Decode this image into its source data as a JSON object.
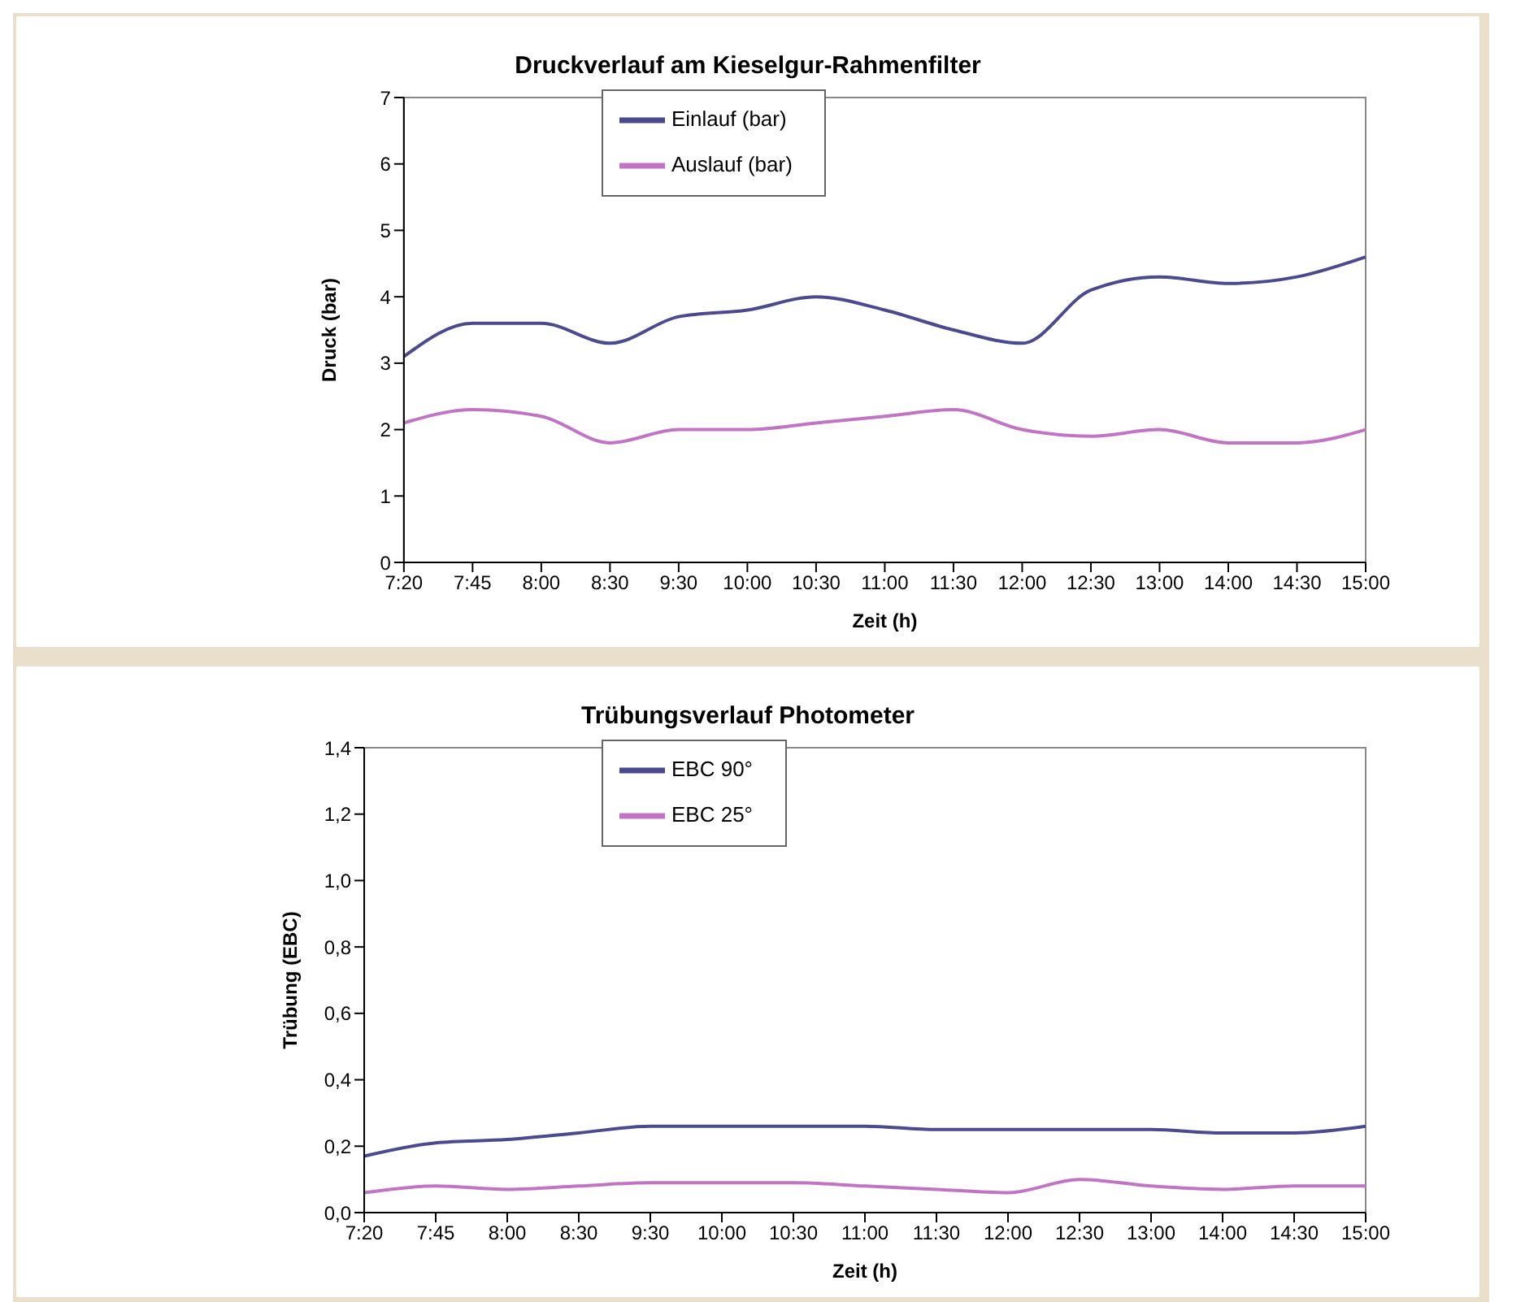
{
  "chart_data": [
    {
      "type": "line",
      "title": "Druckverlauf am Kieselgur-Rahmenfilter",
      "xlabel": "Zeit (h)",
      "ylabel": "Druck (bar)",
      "categories": [
        "7:20",
        "7:45",
        "8:00",
        "8:30",
        "9:30",
        "10:00",
        "10:30",
        "11:00",
        "11:30",
        "12:00",
        "12:30",
        "13:00",
        "14:00",
        "14:30",
        "15:00"
      ],
      "series": [
        {
          "name": "Einlauf (bar)",
          "color": "#4b4a8e",
          "values": [
            3.1,
            3.6,
            3.6,
            3.3,
            3.7,
            3.8,
            4.0,
            3.8,
            3.5,
            3.3,
            4.1,
            4.3,
            4.2,
            4.3,
            4.6
          ]
        },
        {
          "name": "Auslauf (bar)",
          "color": "#c174c4",
          "values": [
            2.1,
            2.3,
            2.2,
            1.8,
            2.0,
            2.0,
            2.1,
            2.2,
            2.3,
            2.0,
            1.9,
            2.0,
            1.8,
            1.8,
            2.0
          ]
        }
      ],
      "ylim": [
        0,
        7
      ],
      "yticks": [
        0,
        1,
        2,
        3,
        4,
        5,
        6,
        7
      ],
      "grid": false,
      "legend": "top",
      "marker": "none",
      "line_style": "solid"
    },
    {
      "type": "line",
      "title": "Trübungsverlauf Photometer",
      "xlabel": "Zeit (h)",
      "ylabel": "Trübung  (EBC)",
      "categories": [
        "7:20",
        "7:45",
        "8:00",
        "8:30",
        "9:30",
        "10:00",
        "10:30",
        "11:00",
        "11:30",
        "12:00",
        "12:30",
        "13:00",
        "14:00",
        "14:30",
        "15:00"
      ],
      "series": [
        {
          "name": "EBC 90°",
          "color": "#4b4a8e",
          "values": [
            0.17,
            0.21,
            0.22,
            0.24,
            0.26,
            0.26,
            0.26,
            0.26,
            0.25,
            0.25,
            0.25,
            0.25,
            0.24,
            0.24,
            0.26
          ]
        },
        {
          "name": "EBC 25°",
          "color": "#c174c4",
          "values": [
            0.06,
            0.08,
            0.07,
            0.08,
            0.09,
            0.09,
            0.09,
            0.08,
            0.07,
            0.06,
            0.1,
            0.08,
            0.07,
            0.08,
            0.08
          ]
        }
      ],
      "ylim": [
        0,
        1.4
      ],
      "yticks": [
        {
          "value": 0,
          "label": "0,0"
        },
        {
          "value": 0.2,
          "label": "0,2"
        },
        {
          "value": 0.4,
          "label": "0,4"
        },
        {
          "value": 0.6,
          "label": "0,6"
        },
        {
          "value": 0.8,
          "label": "0,8"
        },
        {
          "value": 1.0,
          "label": "1,0"
        },
        {
          "value": 1.2,
          "label": "1,2"
        },
        {
          "value": 1.4,
          "label": "1,4"
        }
      ],
      "grid": false,
      "legend": "top",
      "marker": "none",
      "line_style": "solid"
    }
  ]
}
